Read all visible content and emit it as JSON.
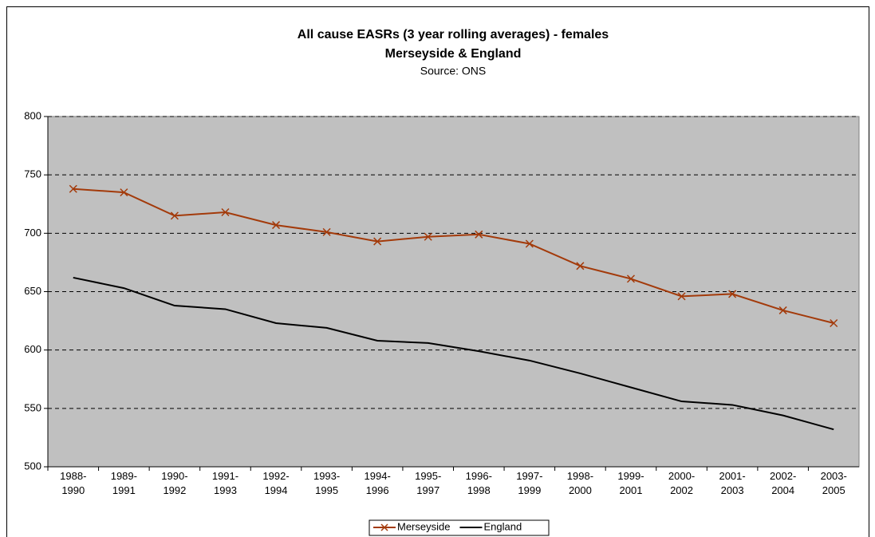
{
  "chart_data": {
    "type": "line",
    "title": "All cause EASRs (3 year rolling averages) - females",
    "subtitle": "Merseyside & England",
    "source": "Source: ONS",
    "categories": [
      "1988-1990",
      "1989-1991",
      "1990-1992",
      "1991-1993",
      "1992-1994",
      "1993-1995",
      "1994-1996",
      "1995-1997",
      "1996-1998",
      "1997-1999",
      "1998-2000",
      "1999-2001",
      "2000-2002",
      "2001-2003",
      "2002-2004",
      "2003-2005"
    ],
    "series": [
      {
        "name": "Merseyside",
        "color": "#a33a0a",
        "marker": "x",
        "values": [
          738,
          735,
          715,
          718,
          707,
          701,
          693,
          697,
          699,
          691,
          672,
          661,
          646,
          648,
          634,
          623
        ]
      },
      {
        "name": "England",
        "color": "#000000",
        "marker": "none",
        "values": [
          662,
          653,
          638,
          635,
          623,
          619,
          608,
          606,
          599,
          591,
          580,
          568,
          556,
          553,
          544,
          532
        ]
      }
    ],
    "ylim": [
      500,
      800
    ],
    "yticks": [
      500,
      550,
      600,
      650,
      700,
      750,
      800
    ],
    "grid": true,
    "legend": "bottom"
  }
}
